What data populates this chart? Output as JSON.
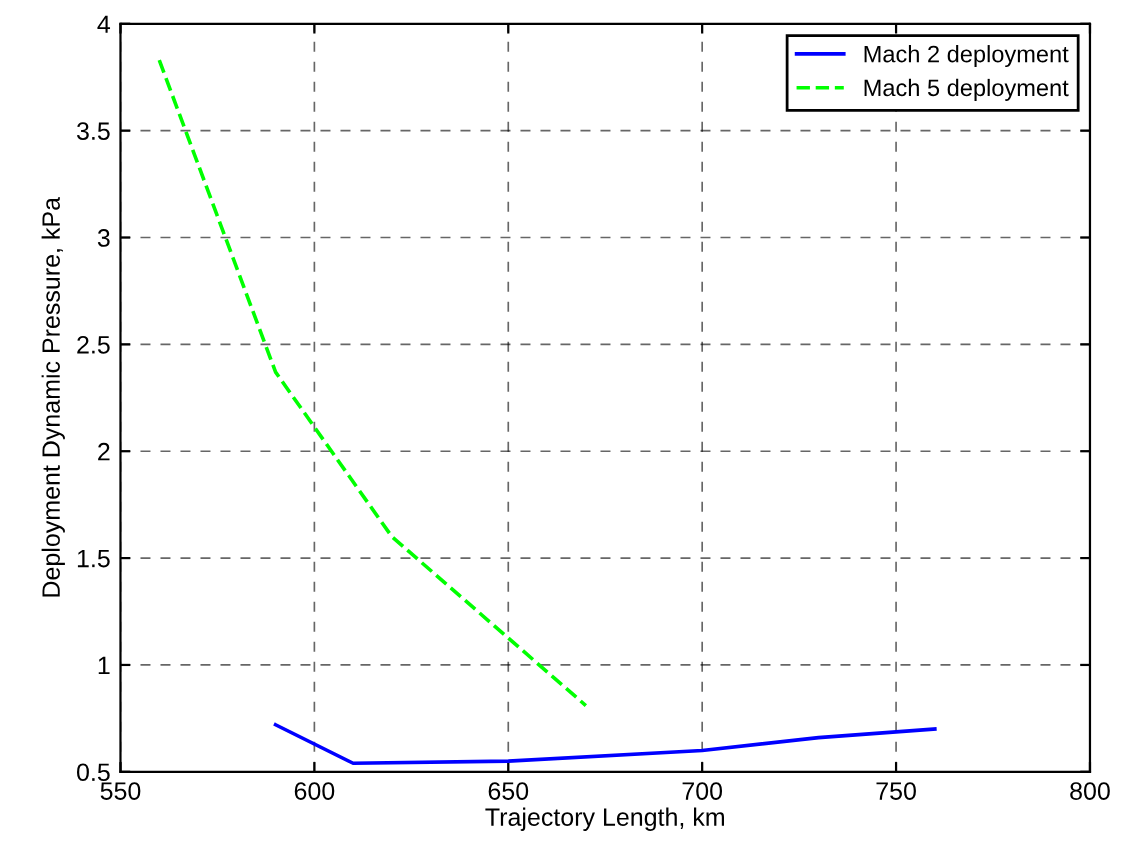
{
  "chart_data": {
    "type": "line",
    "xlabel": "Trajectory Length, km",
    "ylabel": "Deployment Dynamic Pressure, kPa",
    "xlim": [
      550,
      800
    ],
    "ylim": [
      0.5,
      4
    ],
    "xticks": [
      550,
      600,
      650,
      700,
      750,
      800
    ],
    "yticks": [
      0.5,
      1,
      1.5,
      2,
      2.5,
      3,
      3.5,
      4
    ],
    "grid": true,
    "legend": "top right",
    "series": [
      {
        "name": "Mach 2 deployment",
        "color": "#0000ff",
        "line_style": "solid",
        "x": [
          590,
          610,
          650,
          700,
          730,
          760
        ],
        "values": [
          0.72,
          0.54,
          0.55,
          0.6,
          0.66,
          0.7
        ]
      },
      {
        "name": "Mach 5 deployment",
        "color": "#00ff00",
        "line_style": "dashed",
        "x": [
          560,
          590,
          620,
          670
        ],
        "values": [
          3.83,
          2.37,
          1.6,
          0.81
        ]
      }
    ]
  }
}
